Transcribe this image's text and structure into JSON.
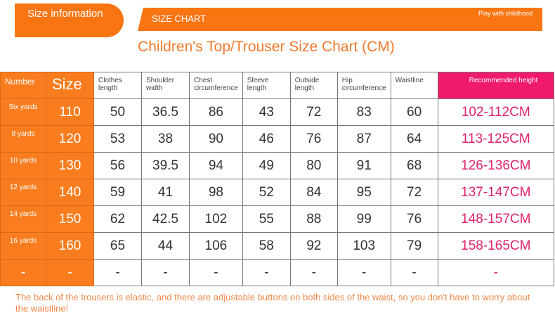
{
  "tab_label": "Size information",
  "banner": {
    "title": "SIZE CHART",
    "slogan": "Play with childhood"
  },
  "title": "Children's Top/Trouser Size Chart (CM)",
  "headers": [
    "Number",
    "Size",
    "Clothes length",
    "Shoulder width",
    "Chest circumference",
    "Sleeve length",
    "Outside length",
    "Hip circumference",
    "Waistline",
    "Recommended height"
  ],
  "rows": [
    [
      "Six yards",
      "110",
      "50",
      "36.5",
      "86",
      "43",
      "72",
      "83",
      "60",
      "102-112CM"
    ],
    [
      "8 yards",
      "120",
      "53",
      "38",
      "90",
      "46",
      "76",
      "87",
      "64",
      "113-125CM"
    ],
    [
      "10 yards",
      "130",
      "56",
      "39.5",
      "94",
      "49",
      "80",
      "91",
      "68",
      "126-136CM"
    ],
    [
      "12 yards",
      "140",
      "59",
      "41",
      "98",
      "52",
      "84",
      "95",
      "72",
      "137-147CM"
    ],
    [
      "14 yards",
      "150",
      "62",
      "42.5",
      "102",
      "55",
      "88",
      "99",
      "76",
      "148-157CM"
    ],
    [
      "16 yards",
      "160",
      "65",
      "44",
      "106",
      "58",
      "92",
      "103",
      "79",
      "158-165CM"
    ],
    [
      "-",
      "-",
      "-",
      "-",
      "-",
      "-",
      "-",
      "-",
      "-",
      "-"
    ]
  ],
  "note": "The back of the trousers is elastic, and there are adjustable buttons on both sides of the waist, so you don't have to worry about the waistline!",
  "colors": {
    "orange": "#f97512",
    "pink": "#f01a6b"
  }
}
